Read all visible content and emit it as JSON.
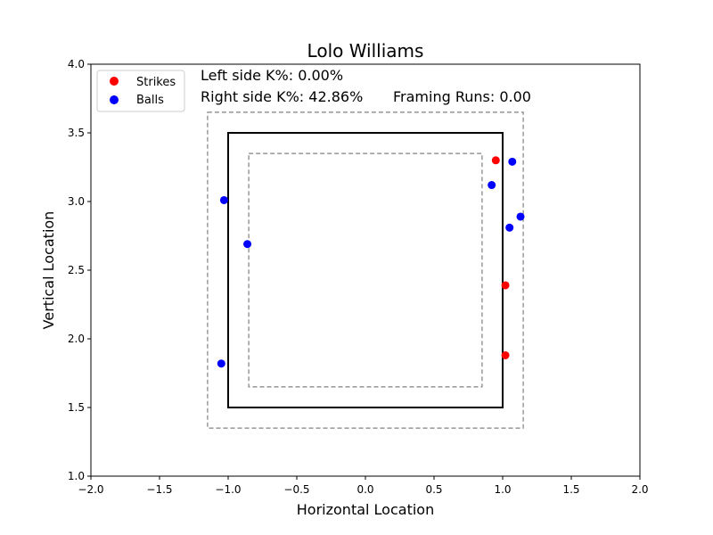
{
  "chart_data": {
    "type": "scatter",
    "title": "Lolo Williams",
    "xlabel": "Horizontal Location",
    "ylabel": "Vertical Location",
    "xlim": [
      -2.0,
      2.0
    ],
    "ylim": [
      1.0,
      4.0
    ],
    "x_ticks": [
      "−2.0",
      "−1.5",
      "−1.0",
      "−0.5",
      "0.0",
      "0.5",
      "1.0",
      "1.5",
      "2.0"
    ],
    "y_ticks": [
      "1.0",
      "1.5",
      "2.0",
      "2.5",
      "3.0",
      "3.5",
      "4.0"
    ],
    "grid": false,
    "legend_position": "top-left",
    "annotations": {
      "left_k": "Left side K%: 0.00%",
      "right_k": "Right side K%: 42.86%",
      "framing": "Framing Runs: 0.00"
    },
    "zones": {
      "strike_zone": {
        "x": [
          -1.0,
          1.0
        ],
        "y": [
          1.5,
          3.5
        ],
        "style": "solid",
        "color": "#000000"
      },
      "outer_zone": {
        "x": [
          -1.15,
          1.15
        ],
        "y": [
          1.35,
          3.65
        ],
        "style": "dashed",
        "color": "#808080"
      },
      "inner_zone": {
        "x": [
          -0.85,
          0.85
        ],
        "y": [
          1.65,
          3.35
        ],
        "style": "dashed",
        "color": "#808080"
      }
    },
    "series": [
      {
        "name": "Strikes",
        "color": "#ff0000",
        "points": [
          {
            "x": 0.95,
            "y": 3.3
          },
          {
            "x": 1.02,
            "y": 2.39
          },
          {
            "x": 1.02,
            "y": 1.88
          }
        ]
      },
      {
        "name": "Balls",
        "color": "#0000ff",
        "points": [
          {
            "x": -1.03,
            "y": 3.01
          },
          {
            "x": -0.86,
            "y": 2.69
          },
          {
            "x": -1.05,
            "y": 1.82
          },
          {
            "x": 0.92,
            "y": 3.12
          },
          {
            "x": 1.07,
            "y": 3.29
          },
          {
            "x": 1.13,
            "y": 2.89
          },
          {
            "x": 1.05,
            "y": 2.81
          }
        ]
      }
    ]
  }
}
